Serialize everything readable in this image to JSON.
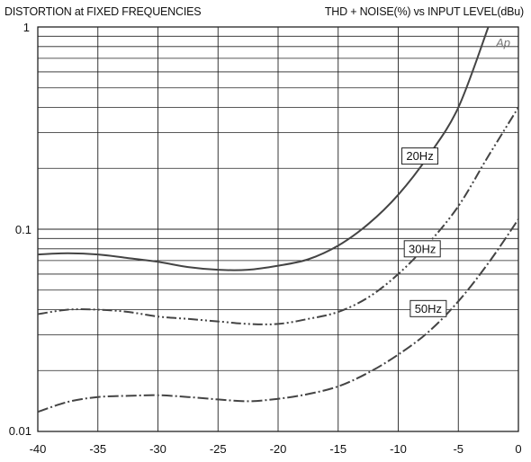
{
  "chart_data": {
    "type": "line",
    "title": "DISTORTION at FIXED FREQUENCIES",
    "subtitle": "THD + NOISE(%) vs INPUT LEVEL(dBu)",
    "xlabel": "",
    "ylabel": "",
    "xlim": [
      -40,
      0
    ],
    "ylim": [
      0.01,
      1
    ],
    "yscale": "log",
    "grid": true,
    "x_ticks": [
      -40,
      -35,
      -30,
      -25,
      -20,
      -15,
      -10,
      -5,
      0
    ],
    "x_tick_labels": [
      "-40",
      "-35",
      "-30",
      "-25",
      "-20",
      "-15",
      "-10",
      "-5",
      "0"
    ],
    "y_ticks": [
      0.01,
      0.1,
      1
    ],
    "y_tick_labels": [
      "0.01",
      "0.1",
      "1"
    ],
    "logo": "Ap",
    "series": [
      {
        "name": "20Hz",
        "style": "solid",
        "x": [
          -40,
          -37.5,
          -35,
          -32.5,
          -30,
          -27.5,
          -25,
          -22.5,
          -20,
          -17.5,
          -15,
          -12.5,
          -10,
          -7.5,
          -5,
          -2.5
        ],
        "y": [
          0.075,
          0.076,
          0.075,
          0.072,
          0.069,
          0.065,
          0.063,
          0.063,
          0.066,
          0.071,
          0.083,
          0.106,
          0.148,
          0.23,
          0.4,
          1.0
        ]
      },
      {
        "name": "30Hz",
        "style": "dash-dot-dot",
        "x": [
          -40,
          -37.5,
          -35,
          -32.5,
          -30,
          -27.5,
          -25,
          -22.5,
          -20,
          -17.5,
          -15,
          -12.5,
          -10,
          -7.5,
          -5,
          -2.5,
          0
        ],
        "y": [
          0.038,
          0.04,
          0.04,
          0.039,
          0.037,
          0.036,
          0.035,
          0.034,
          0.034,
          0.036,
          0.039,
          0.046,
          0.06,
          0.085,
          0.13,
          0.23,
          0.4
        ]
      },
      {
        "name": "50Hz",
        "style": "dash-dot",
        "x": [
          -40,
          -37.5,
          -35,
          -32.5,
          -30,
          -27.5,
          -25,
          -22.5,
          -20,
          -17.5,
          -15,
          -12.5,
          -10,
          -7.5,
          -5,
          -2.5,
          0
        ],
        "y": [
          0.0125,
          0.014,
          0.0148,
          0.015,
          0.0151,
          0.0148,
          0.0144,
          0.0141,
          0.0145,
          0.0153,
          0.0167,
          0.0195,
          0.024,
          0.031,
          0.044,
          0.068,
          0.112
        ]
      }
    ]
  }
}
